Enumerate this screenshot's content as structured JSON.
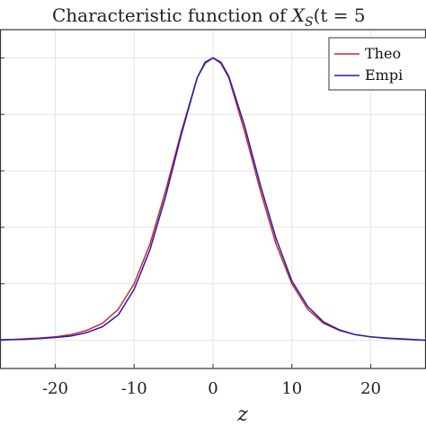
{
  "chart_data": {
    "type": "line",
    "title_main": "Characteristic function of ",
    "title_var": "X",
    "title_sub": "S",
    "title_tail": "(t = 5",
    "xlabel": "z",
    "ylabel": "",
    "xlim": [
      -27,
      27
    ],
    "ylim": [
      -0.1,
      1.1
    ],
    "xticks": [
      -20,
      -10,
      0,
      10,
      20
    ],
    "xtick_labels": [
      "-20",
      "-10",
      "0",
      "10",
      "20"
    ],
    "yticks": [
      0,
      0.2,
      0.4,
      0.6,
      0.8,
      1.0
    ],
    "grid": true,
    "legend_position": "top-right",
    "series": [
      {
        "name": "Theo",
        "color": "#d62728",
        "x": [
          -27,
          -24,
          -22,
          -20,
          -18,
          -16,
          -14,
          -12,
          -10,
          -8,
          -6,
          -4,
          -2,
          -1,
          0,
          1,
          2,
          4,
          6,
          8,
          10,
          12,
          14,
          16,
          18,
          20,
          22,
          24,
          27
        ],
        "y": [
          0.0,
          0.005,
          0.008,
          0.012,
          0.02,
          0.035,
          0.06,
          0.11,
          0.2,
          0.34,
          0.53,
          0.74,
          0.93,
          0.98,
          1.0,
          0.98,
          0.93,
          0.74,
          0.53,
          0.34,
          0.2,
          0.11,
          0.06,
          0.035,
          0.02,
          0.012,
          0.008,
          0.005,
          0.0
        ]
      },
      {
        "name": "Empi",
        "color": "#1f1fb4",
        "x": [
          -27,
          -24,
          -22,
          -20,
          -18,
          -16,
          -14,
          -12,
          -10,
          -8,
          -6,
          -4,
          -2,
          -1,
          0,
          1,
          2,
          4,
          6,
          8,
          10,
          12,
          14,
          16,
          18,
          20,
          22,
          24,
          27
        ],
        "y": [
          0.002,
          0.003,
          0.006,
          0.01,
          0.015,
          0.027,
          0.048,
          0.09,
          0.18,
          0.32,
          0.51,
          0.73,
          0.93,
          0.985,
          1.0,
          0.985,
          0.935,
          0.76,
          0.55,
          0.36,
          0.21,
          0.12,
          0.065,
          0.037,
          0.02,
          0.012,
          0.007,
          0.004,
          0.0
        ]
      }
    ]
  }
}
